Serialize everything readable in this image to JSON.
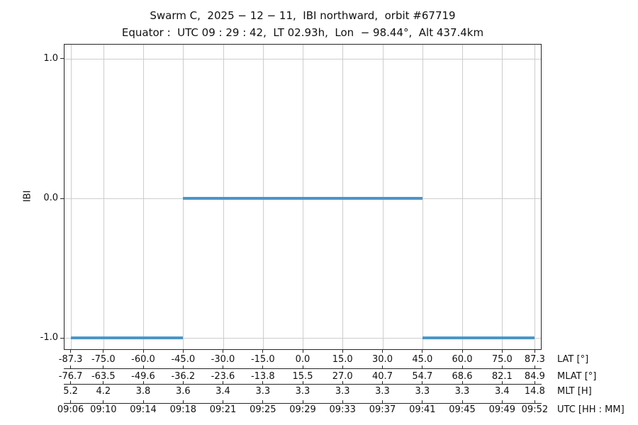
{
  "title": {
    "line1": "Swarm C,  2025 − 12 − 11,  IBI northward,  orbit #67719",
    "line2": "Equator :  UTC 09 : 29 : 42,  LT 02.93h,  Lon  − 98.44°,  Alt 437.4km"
  },
  "chart_data": {
    "type": "line",
    "title": "Swarm C, 2025-12-11, IBI northward, orbit #67719",
    "subtitle": "Equator: UTC 09:29:42, LT 02.93h, Lon -98.44°, Alt 437.4km",
    "ylabel": "IBI",
    "ylim": [
      -1.08,
      1.1
    ],
    "xlim_lat": [
      -89.6,
      89.6
    ],
    "grid": true,
    "legend": "none",
    "y_ticks": {
      "values": [
        1.0,
        0.0,
        -1.0
      ],
      "labels": [
        "1.0",
        "0.0",
        "-1.0"
      ]
    },
    "x_tick_lats": [
      -87.3,
      -75.0,
      -60.0,
      -45.0,
      -30.0,
      -15.0,
      0.0,
      15.0,
      30.0,
      45.0,
      60.0,
      75.0,
      87.3
    ],
    "x_axis_rows": [
      {
        "label": "LAT [°]",
        "values": [
          "-87.3",
          "-75.0",
          "-60.0",
          "-45.0",
          "-30.0",
          "-15.0",
          "0.0",
          "15.0",
          "30.0",
          "45.0",
          "60.0",
          "75.0",
          "87.3"
        ]
      },
      {
        "label": "MLAT [°]",
        "values": [
          "-76.7",
          "-63.5",
          "-49.6",
          "-36.2",
          "-23.6",
          "-13.8",
          "15.5",
          "27.0",
          "40.7",
          "54.7",
          "68.6",
          "82.1",
          "84.9"
        ]
      },
      {
        "label": "MLT [H]",
        "values": [
          "5.2",
          "4.2",
          "3.8",
          "3.6",
          "3.4",
          "3.3",
          "3.3",
          "3.3",
          "3.3",
          "3.3",
          "3.3",
          "3.4",
          "14.8"
        ]
      },
      {
        "label": "UTC [HH : MM]",
        "values": [
          "09:06",
          "09:10",
          "09:14",
          "09:18",
          "09:21",
          "09:25",
          "09:29",
          "09:33",
          "09:37",
          "09:41",
          "09:45",
          "09:49",
          "09:52"
        ]
      }
    ],
    "series": [
      {
        "name": "IBI",
        "color": "#4b96c8",
        "linewidth": 4,
        "segments": [
          {
            "y": -1.0,
            "x": [
              -87.3,
              -45.0
            ]
          },
          {
            "y": 0.0,
            "x": [
              -45.0,
              45.0
            ]
          },
          {
            "y": -1.0,
            "x": [
              45.0,
              87.3
            ]
          }
        ]
      }
    ]
  }
}
